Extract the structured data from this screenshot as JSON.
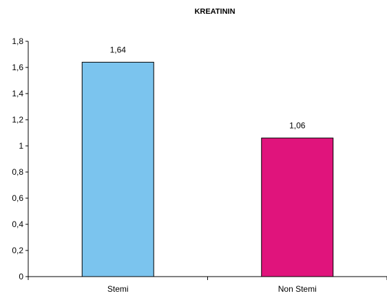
{
  "chart_data": {
    "type": "bar",
    "title": "KREATININ",
    "xlabel": "",
    "ylabel": "",
    "categories": [
      "Stemi",
      "Non Stemi"
    ],
    "values": [
      1.64,
      1.06
    ],
    "data_labels": [
      "1,64",
      "1,06"
    ],
    "bar_colors": [
      "#7BC4EE",
      "#E0147C"
    ],
    "ylim": [
      0,
      1.8
    ],
    "y_ticks": [
      0,
      0.2,
      0.4,
      0.6,
      0.8,
      1,
      1.2,
      1.4,
      1.6,
      1.8
    ],
    "y_tick_labels": [
      "0",
      "0,2",
      "0,4",
      "0,6",
      "0,8",
      "1",
      "1,2",
      "1,4",
      "1,6",
      "1,8"
    ],
    "grid": false,
    "legend": "none"
  }
}
